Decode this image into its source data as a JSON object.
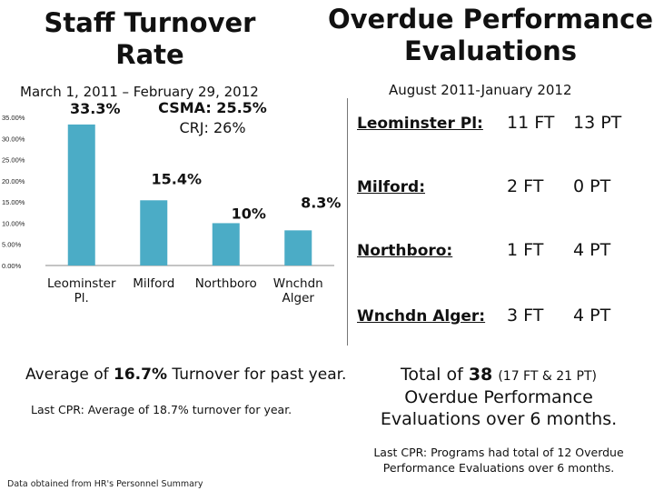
{
  "left_title": "Staff Turnover Rate",
  "right_title": "Overdue Performance Evaluations",
  "left_date_range": "March 1, 2011 – February 29, 2012",
  "right_date_range": "August 2011-January 2012",
  "csma_label": "CSMA: 25.5%",
  "crj_label": "CRJ: 26%",
  "chart_data": {
    "type": "bar",
    "title": "Staff Turnover Rate",
    "categories": [
      "Leominster Pl.",
      "Milford",
      "Northboro",
      "Wnchdn Alger"
    ],
    "values": [
      33.3,
      15.4,
      10,
      8.3
    ],
    "data_labels": [
      "33.3%",
      "15.4%",
      "10%",
      "8.3%"
    ],
    "ylim": [
      0,
      35
    ],
    "yticks": [
      0,
      5,
      10,
      15,
      20,
      25,
      30,
      35
    ],
    "ytick_labels": [
      "0.00%",
      "5.00%",
      "10.00%",
      "15.00%",
      "20.00%",
      "25.00%",
      "30.00%",
      "35.00%"
    ],
    "bar_color": "#4BACC6",
    "xlabel": "",
    "ylabel": ""
  },
  "overdue_table": [
    {
      "program": "Leominster Pl:",
      "ft": "11 FT",
      "pt": "13 PT"
    },
    {
      "program": "Milford:",
      "ft": "2 FT",
      "pt": "0 PT"
    },
    {
      "program": "Northboro:",
      "ft": "1 FT",
      "pt": "4 PT"
    },
    {
      "program": "Wnchdn Alger:",
      "ft": "3 FT",
      "pt": "4 PT"
    }
  ],
  "average": {
    "prefix": "Average of ",
    "value": "16.7%",
    "suffix": " Turnover for past year."
  },
  "last_cpr_left": "Last CPR: Average of 18.7% turnover for year.",
  "total": {
    "prefix": "Total of ",
    "value": "38",
    "breakdown": "(17 FT & 21 PT)",
    "rest": "Overdue Performance Evaluations over 6 months."
  },
  "last_cpr_right": "Last CPR: Programs had total of 12 Overdue Performance Evaluations over 6 months.",
  "footnote": "Data obtained from HR's Personnel Summary"
}
